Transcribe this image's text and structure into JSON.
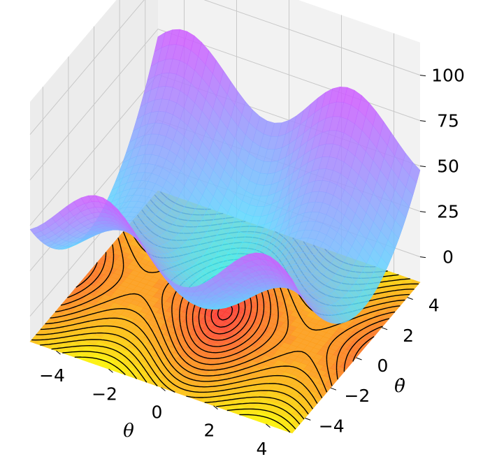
{
  "chart_data": {
    "type": "surface3d",
    "title": "",
    "xlabel": "θ",
    "ylabel": "θ̇",
    "zlabel": "",
    "x_ticks": [
      "−4",
      "−2",
      "0",
      "2",
      "4"
    ],
    "y_ticks": [
      "−4",
      "−2",
      "0",
      "2",
      "4"
    ],
    "z_ticks": [
      "0",
      "25",
      "50",
      "75",
      "100"
    ],
    "xlim": [
      -5,
      5
    ],
    "ylim": [
      -5,
      5
    ],
    "zlim": [
      -14,
      118
    ],
    "surface": {
      "description_of_function": "z = 12*(1 - cos x) + 2*(y + 0.6*sin x)^2",
      "grid": [
        -5,
        5
      ],
      "colormap": "cool",
      "alpha": 0.85
    },
    "contour_floor": {
      "z_offset": -14,
      "colormap": "autumn",
      "levels": 18,
      "line_color": "#000000"
    },
    "grid": true,
    "colors": {
      "pane_back": "#f2f2f2",
      "pane_side": "#ececec",
      "pane_floor": "#e6e6e6",
      "grid": "#c8c8c8"
    }
  }
}
